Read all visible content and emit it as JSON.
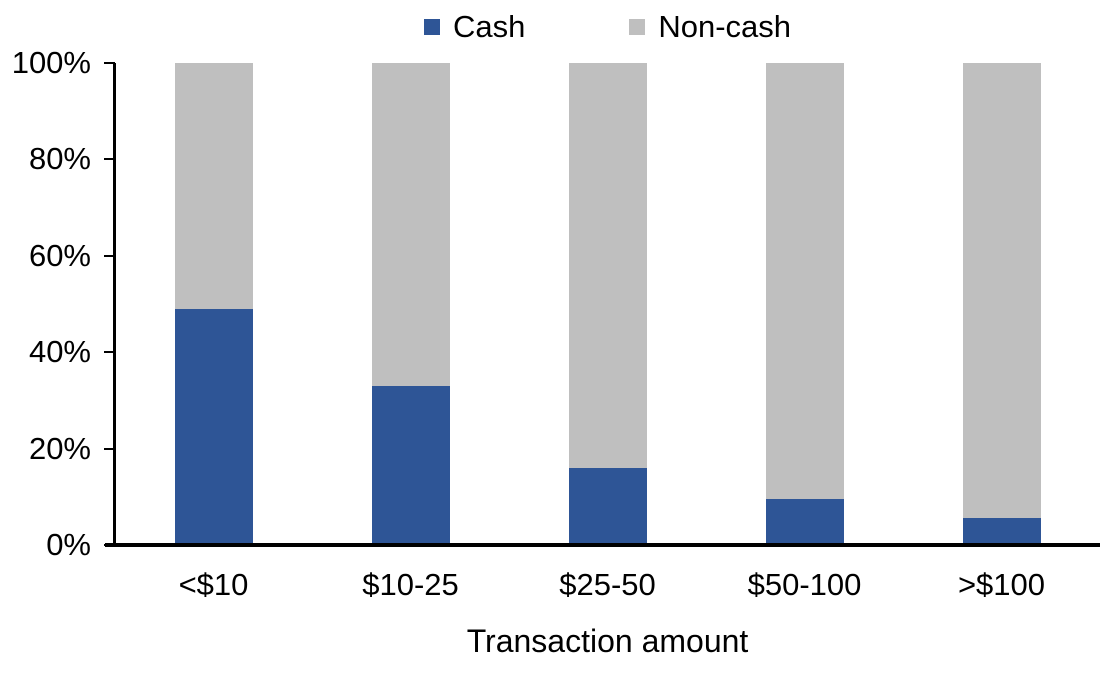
{
  "chart_data": {
    "type": "bar",
    "bar_mode": "stacked",
    "title": "",
    "categories": [
      "<$10",
      "$10-25",
      "$25-50",
      "$50-100",
      ">$100"
    ],
    "series": [
      {
        "name": "Cash",
        "color": "#2E5596",
        "values": [
          49,
          33,
          16,
          9.5,
          5.5
        ]
      },
      {
        "name": "Non-cash",
        "color": "#BFBFBF",
        "values": [
          51,
          67,
          84,
          90.5,
          94.5
        ]
      }
    ],
    "xlabel": "Transaction amount",
    "ylabel": "",
    "ylim": [
      0,
      100
    ],
    "yticks": [
      "0%",
      "20%",
      "40%",
      "60%",
      "80%",
      "100%"
    ],
    "legend_position": "top",
    "grid": false,
    "axis_color": "#000000",
    "text_color": "#000000",
    "background": "#FFFFFF"
  }
}
